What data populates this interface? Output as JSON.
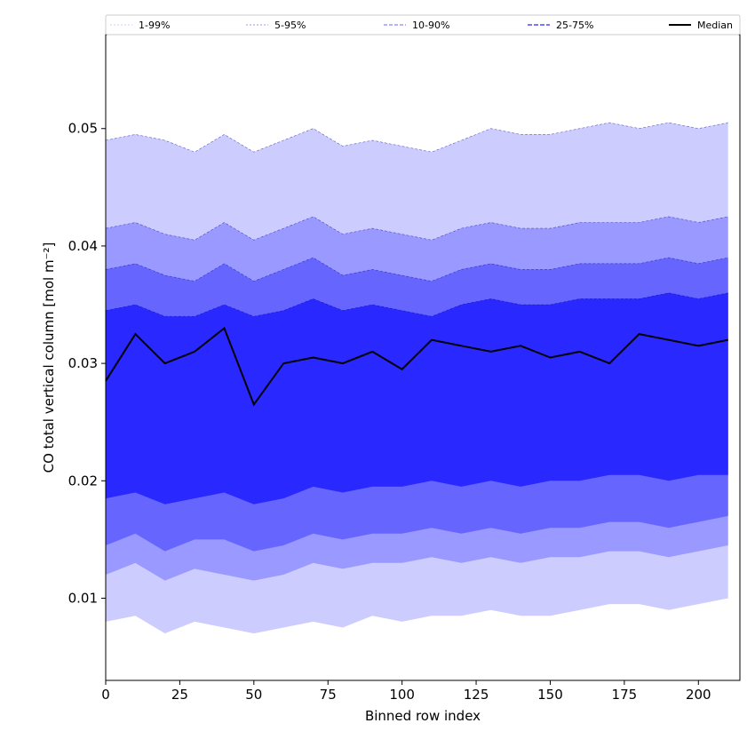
{
  "chart_data": {
    "type": "area",
    "title": "",
    "xlabel": "Binned row index",
    "ylabel": "CO total vertical column [mol m⁻²]",
    "xlim": [
      0,
      214
    ],
    "ylim": [
      0.003,
      0.058
    ],
    "xticks": [
      0,
      25,
      50,
      75,
      100,
      125,
      150,
      175,
      200
    ],
    "yticks": [
      0.01,
      0.02,
      0.03,
      0.04,
      0.05
    ],
    "ytick_labels": [
      "0.01",
      "0.02",
      "0.03",
      "0.04",
      "0.05"
    ],
    "grid": false,
    "legend_position": "top (above plot, single row)",
    "legend": [
      {
        "label": "1-99%",
        "color": "#ccccff"
      },
      {
        "label": "5-95%",
        "color": "#9999ff"
      },
      {
        "label": "10-90%",
        "color": "#6666ff"
      },
      {
        "label": "25-75%",
        "color": "#2828ff"
      },
      {
        "label": "Median",
        "color": "#000000"
      }
    ],
    "x_start": 0,
    "x_step": 10,
    "median": [
      0.0285,
      0.0325,
      0.03,
      0.031,
      0.033,
      0.0265,
      0.03,
      0.0305,
      0.03,
      0.031,
      0.0295,
      0.032,
      0.0315,
      0.031,
      0.0315,
      0.0305,
      0.031,
      0.03,
      0.0325,
      0.032,
      0.0315,
      0.032
    ],
    "bands": [
      {
        "name": "1-99%",
        "lower": [
          0.008,
          0.0085,
          0.007,
          0.008,
          0.0075,
          0.007,
          0.0075,
          0.008,
          0.0075,
          0.0085,
          0.008,
          0.0085,
          0.0085,
          0.009,
          0.0085,
          0.0085,
          0.009,
          0.0095,
          0.0095,
          0.009,
          0.0095,
          0.01
        ],
        "upper": [
          0.049,
          0.0495,
          0.049,
          0.048,
          0.0495,
          0.048,
          0.049,
          0.05,
          0.0485,
          0.049,
          0.0485,
          0.048,
          0.049,
          0.05,
          0.0495,
          0.0495,
          0.05,
          0.0505,
          0.05,
          0.0505,
          0.05,
          0.0505
        ]
      },
      {
        "name": "5-95%",
        "lower": [
          0.012,
          0.013,
          0.0115,
          0.0125,
          0.012,
          0.0115,
          0.012,
          0.013,
          0.0125,
          0.013,
          0.013,
          0.0135,
          0.013,
          0.0135,
          0.013,
          0.0135,
          0.0135,
          0.014,
          0.014,
          0.0135,
          0.014,
          0.0145
        ],
        "upper": [
          0.0415,
          0.042,
          0.041,
          0.0405,
          0.042,
          0.0405,
          0.0415,
          0.0425,
          0.041,
          0.0415,
          0.041,
          0.0405,
          0.0415,
          0.042,
          0.0415,
          0.0415,
          0.042,
          0.042,
          0.042,
          0.0425,
          0.042,
          0.0425
        ]
      },
      {
        "name": "10-90%",
        "lower": [
          0.0145,
          0.0155,
          0.014,
          0.015,
          0.015,
          0.014,
          0.0145,
          0.0155,
          0.015,
          0.0155,
          0.0155,
          0.016,
          0.0155,
          0.016,
          0.0155,
          0.016,
          0.016,
          0.0165,
          0.0165,
          0.016,
          0.0165,
          0.017
        ],
        "upper": [
          0.038,
          0.0385,
          0.0375,
          0.037,
          0.0385,
          0.037,
          0.038,
          0.039,
          0.0375,
          0.038,
          0.0375,
          0.037,
          0.038,
          0.0385,
          0.038,
          0.038,
          0.0385,
          0.0385,
          0.0385,
          0.039,
          0.0385,
          0.039
        ]
      },
      {
        "name": "25-75%",
        "lower": [
          0.0185,
          0.019,
          0.018,
          0.0185,
          0.019,
          0.018,
          0.0185,
          0.0195,
          0.019,
          0.0195,
          0.0195,
          0.02,
          0.0195,
          0.02,
          0.0195,
          0.02,
          0.02,
          0.0205,
          0.0205,
          0.02,
          0.0205,
          0.0205
        ],
        "upper": [
          0.0345,
          0.035,
          0.034,
          0.034,
          0.035,
          0.034,
          0.0345,
          0.0355,
          0.0345,
          0.035,
          0.0345,
          0.034,
          0.035,
          0.0355,
          0.035,
          0.035,
          0.0355,
          0.0355,
          0.0355,
          0.036,
          0.0355,
          0.036
        ]
      }
    ]
  }
}
